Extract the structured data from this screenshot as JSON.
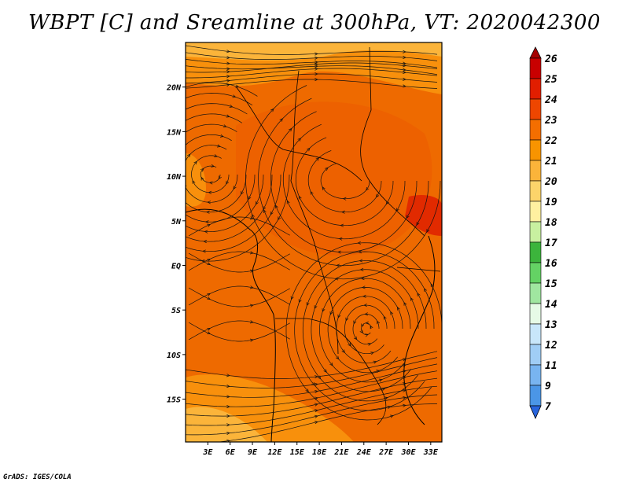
{
  "chart_data": {
    "type": "heatmap",
    "title": "WBPT [C] and Sreamline at 300hPa, VT: 2020042300",
    "x_ticks": [
      "3E",
      "6E",
      "9E",
      "12E",
      "15E",
      "18E",
      "21E",
      "24E",
      "27E",
      "30E",
      "33E"
    ],
    "x_tick_values": [
      3,
      6,
      9,
      12,
      15,
      18,
      21,
      24,
      27,
      30,
      33
    ],
    "y_ticks": [
      "20N",
      "15N",
      "10N",
      "5N",
      "EQ",
      "5S",
      "10S",
      "15S"
    ],
    "y_tick_values": [
      20,
      15,
      10,
      5,
      0,
      -5,
      -10,
      -15
    ],
    "xlim": [
      0,
      34.5
    ],
    "ylim": [
      -19.8,
      25
    ],
    "colorbar": {
      "labels": [
        "26",
        "25",
        "24",
        "23",
        "22",
        "21",
        "20",
        "19",
        "18",
        "17",
        "16",
        "15",
        "14",
        "13",
        "12",
        "11",
        "9",
        "7"
      ],
      "colors": [
        "#a50000",
        "#c80000",
        "#e11e00",
        "#ee4600",
        "#f46e00",
        "#f89400",
        "#fbb43a",
        "#fcd46a",
        "#fff0a0",
        "#c8f0a0",
        "#3cb43c",
        "#64d264",
        "#a0e6a0",
        "#e6fae6",
        "#c8e6fa",
        "#a0cdf5",
        "#78b4f0",
        "#4b96e6",
        "#2864dc"
      ]
    },
    "credit": "GrADS: IGES/COLA",
    "dominant_value_range": [
      21,
      23
    ]
  }
}
